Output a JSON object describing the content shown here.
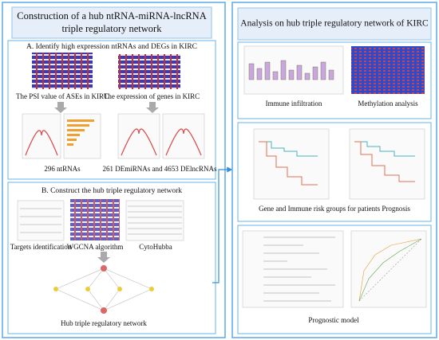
{
  "left_panel": {
    "title_lines": [
      "Construction of a hub ntRNA-miRNA-lncRNA",
      "triple regulatory network"
    ],
    "section_a": {
      "heading": "A. Identify high expression ntRNAs and DEGs in KIRC",
      "captions": [
        "The PSI value of ASEs in KIRC",
        "The expression of genes in KIRC",
        "296 ntRNAs",
        "261 DEmiRNAs and 4653 DElncRNAs"
      ]
    },
    "section_b": {
      "heading": "B. Construct the hub triple regulatory network",
      "captions": [
        "Targets identification",
        "WGCNA algorithm",
        "CytoHubba",
        "Hub triple regulatory network"
      ]
    }
  },
  "right_panel": {
    "title": "Analysis on hub triple regulatory network of KIRC",
    "captions": [
      "Immune infiltration",
      "Methylation analysis",
      "Gene and Immune risk groups for patients Prognosis",
      "Prognostic model"
    ]
  }
}
